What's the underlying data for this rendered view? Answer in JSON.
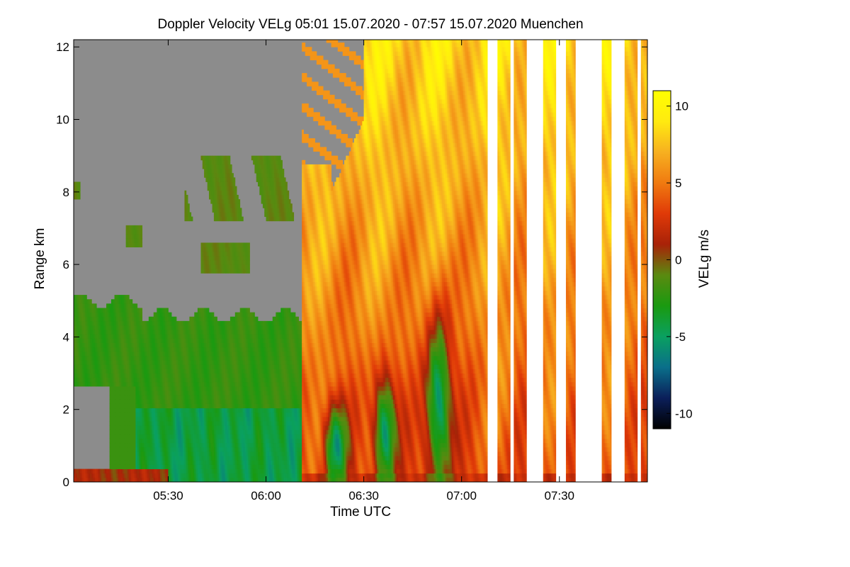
{
  "chart_data": {
    "type": "heatmap",
    "title": "Doppler Velocity VELg   05:01 15.07.2020 - 07:57 15.07.2020 Muenchen",
    "xlabel": "Time UTC",
    "ylabel": "Range km",
    "x_ticks": [
      {
        "value": 30,
        "label": "05:30"
      },
      {
        "value": 60,
        "label": "06:00"
      },
      {
        "value": 90,
        "label": "06:30"
      },
      {
        "value": 120,
        "label": "07:00"
      },
      {
        "value": 150,
        "label": "07:30"
      }
    ],
    "y_ticks": [
      {
        "value": 0,
        "label": "0"
      },
      {
        "value": 2,
        "label": "2"
      },
      {
        "value": 4,
        "label": "4"
      },
      {
        "value": 6,
        "label": "6"
      },
      {
        "value": 8,
        "label": "8"
      },
      {
        "value": 10,
        "label": "10"
      },
      {
        "value": 12,
        "label": "12"
      }
    ],
    "xlim_minutes_after_05": [
      1,
      177
    ],
    "ylim_km": [
      0,
      12.2
    ],
    "colorbar": {
      "label": "VELg m/s",
      "range": [
        -11,
        11
      ],
      "ticks": [
        {
          "value": 10,
          "label": "10"
        },
        {
          "value": 5,
          "label": "5"
        },
        {
          "value": 0,
          "label": "0"
        },
        {
          "value": -5,
          "label": "-5"
        },
        {
          "value": -10,
          "label": "-10"
        }
      ],
      "colors": [
        "#000000",
        "#0b1f5a",
        "#0a6f8a",
        "#0aa060",
        "#1a9a10",
        "#5a8a10",
        "#a82208",
        "#e03a08",
        "#f07a10",
        "#f7b020",
        "#ffea10",
        "#ffff00"
      ]
    },
    "no_signal_color": "#8c8c8c",
    "data_gaps_minutes": [
      [
        128,
        131
      ],
      [
        135,
        136
      ],
      [
        140,
        145
      ],
      [
        149,
        152
      ],
      [
        155,
        163
      ],
      [
        166,
        170
      ],
      [
        174,
        175
      ]
    ],
    "regions": [
      {
        "name": "clear-air",
        "t": [
          1,
          71
        ],
        "range_km": [
          5.2,
          12.2
        ],
        "velocity": "no signal"
      },
      {
        "name": "weak-return-patches",
        "t": [
          35,
          70
        ],
        "range_km": [
          6.0,
          9.0
        ],
        "velocity_ms": -1
      },
      {
        "name": "boundary-layer",
        "t": [
          1,
          71
        ],
        "range_km": [
          2.0,
          5.0
        ],
        "velocity_ms": -2
      },
      {
        "name": "lower-layer",
        "t": [
          20,
          71
        ],
        "range_km": [
          0.0,
          2.1
        ],
        "velocity_ms": -4
      },
      {
        "name": "precipitation",
        "t": [
          71,
          128
        ],
        "range_km": [
          0.0,
          12.2
        ],
        "velocity_ms": 5
      },
      {
        "name": "upper-precip-core",
        "t": [
          75,
          115
        ],
        "range_km": [
          6.0,
          10.5
        ],
        "velocity_ms": 8
      },
      {
        "name": "downdraft-1",
        "t": [
          78,
          85
        ],
        "range_km": [
          0.2,
          2.0
        ],
        "velocity_ms": -4
      },
      {
        "name": "downdraft-2",
        "t": [
          93,
          100
        ],
        "range_km": [
          0.2,
          3.2
        ],
        "velocity_ms": -5
      },
      {
        "name": "downdraft-3",
        "t": [
          109,
          117
        ],
        "range_km": [
          0.5,
          5.0
        ],
        "velocity_ms": -5
      }
    ]
  }
}
